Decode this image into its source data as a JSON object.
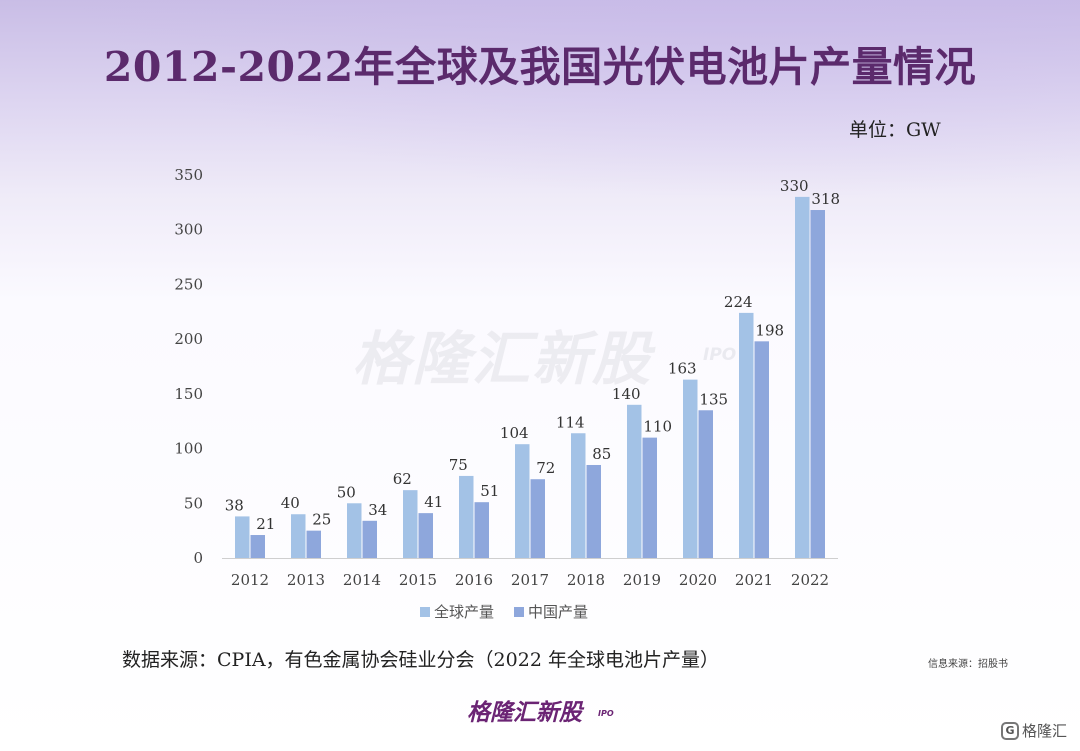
{
  "title": "2012-2022年全球及我国光伏电池片产量情况",
  "unit": "单位：GW",
  "source": "数据来源：CPIA，有色金属协会硅业分会（2022 年全球电池片产量）",
  "info_source": "信息来源：招股书",
  "watermark": {
    "main": "格隆汇新股",
    "sub": "IPO"
  },
  "brand": {
    "main": "格隆汇新股",
    "sub": "IPO"
  },
  "corner_logo": {
    "glyph": "G",
    "text": "格隆汇"
  },
  "colors": {
    "global": "#a3c2e6",
    "china": "#8ea7dc",
    "title": "#5b2a6c",
    "axis": "#cfcfcf"
  },
  "chart_data": {
    "type": "bar",
    "categories": [
      "2012",
      "2013",
      "2014",
      "2015",
      "2016",
      "2017",
      "2018",
      "2019",
      "2020",
      "2021",
      "2022"
    ],
    "series": [
      {
        "name": "全球产量",
        "values": [
          38,
          40,
          50,
          62,
          75,
          104,
          114,
          140,
          163,
          224,
          330
        ]
      },
      {
        "name": "中国产量",
        "values": [
          21,
          25,
          34,
          41,
          51,
          72,
          85,
          110,
          135,
          198,
          318
        ]
      }
    ],
    "yticks": [
      0,
      50,
      100,
      150,
      200,
      250,
      300,
      350
    ],
    "ylim": [
      0,
      350
    ],
    "unit": "GW"
  }
}
